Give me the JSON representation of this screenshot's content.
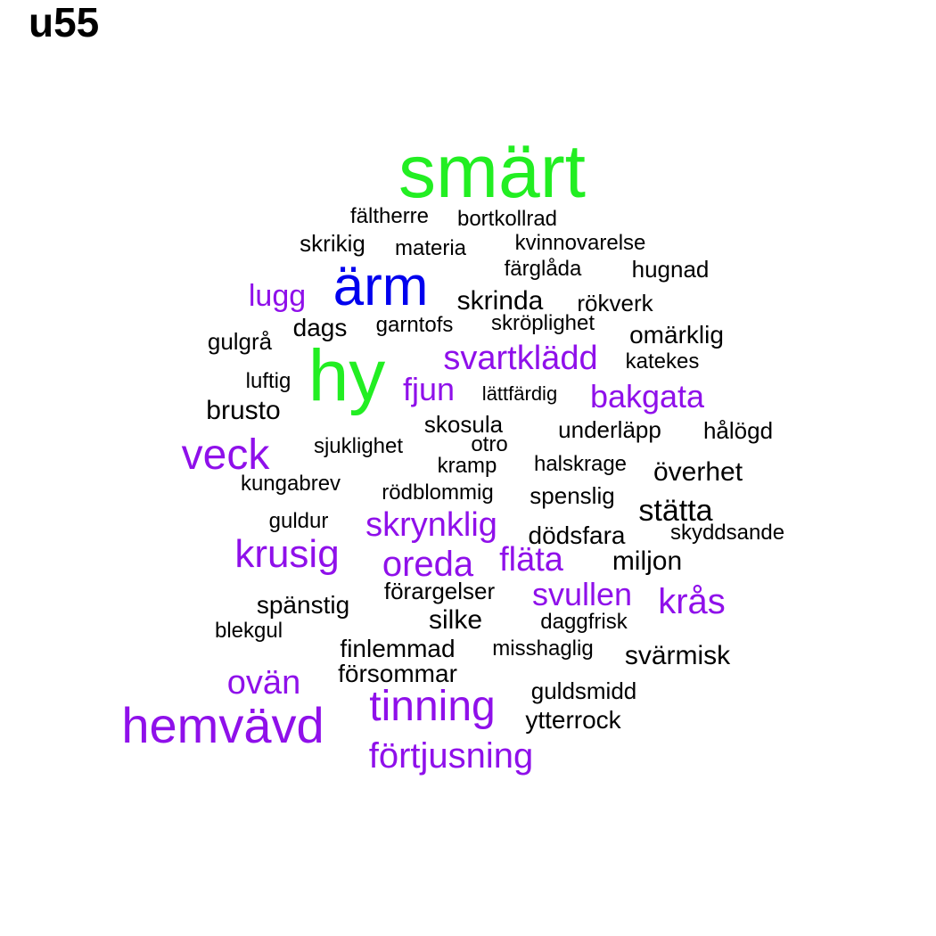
{
  "title": "u55",
  "colors": {
    "green": "#22ee22",
    "blue": "#0000ee",
    "purple": "#8f10ea",
    "black": "#000000"
  },
  "words": [
    {
      "text": "smärt",
      "color": "green"
    },
    {
      "text": "fältherre",
      "color": "black"
    },
    {
      "text": "bortkollrad",
      "color": "black"
    },
    {
      "text": "skrikig",
      "color": "black"
    },
    {
      "text": "materia",
      "color": "black"
    },
    {
      "text": "kvinnovarelse",
      "color": "black"
    },
    {
      "text": "färglåda",
      "color": "black"
    },
    {
      "text": "hugnad",
      "color": "black"
    },
    {
      "text": "lugg",
      "color": "purple"
    },
    {
      "text": "ärm",
      "color": "blue"
    },
    {
      "text": "skrinda",
      "color": "black"
    },
    {
      "text": "rökverk",
      "color": "black"
    },
    {
      "text": "dags",
      "color": "black"
    },
    {
      "text": "garntofs",
      "color": "black"
    },
    {
      "text": "skröplighet",
      "color": "black"
    },
    {
      "text": "omärklig",
      "color": "black"
    },
    {
      "text": "gulgrå",
      "color": "black"
    },
    {
      "text": "hy",
      "color": "green"
    },
    {
      "text": "svartklädd",
      "color": "purple"
    },
    {
      "text": "katekes",
      "color": "black"
    },
    {
      "text": "luftig",
      "color": "black"
    },
    {
      "text": "fjun",
      "color": "purple"
    },
    {
      "text": "lättfärdig",
      "color": "black"
    },
    {
      "text": "bakgata",
      "color": "purple"
    },
    {
      "text": "brusto",
      "color": "black"
    },
    {
      "text": "skosula",
      "color": "black"
    },
    {
      "text": "underläpp",
      "color": "black"
    },
    {
      "text": "hålögd",
      "color": "black"
    },
    {
      "text": "veck",
      "color": "purple"
    },
    {
      "text": "sjuklighet",
      "color": "black"
    },
    {
      "text": "otro",
      "color": "black"
    },
    {
      "text": "kramp",
      "color": "black"
    },
    {
      "text": "halskrage",
      "color": "black"
    },
    {
      "text": "överhet",
      "color": "black"
    },
    {
      "text": "kungabrev",
      "color": "black"
    },
    {
      "text": "rödblommig",
      "color": "black"
    },
    {
      "text": "spenslig",
      "color": "black"
    },
    {
      "text": "stätta",
      "color": "black"
    },
    {
      "text": "guldur",
      "color": "black"
    },
    {
      "text": "skrynklig",
      "color": "purple"
    },
    {
      "text": "dödsfara",
      "color": "black"
    },
    {
      "text": "skyddsande",
      "color": "black"
    },
    {
      "text": "krusig",
      "color": "purple"
    },
    {
      "text": "oreda",
      "color": "purple"
    },
    {
      "text": "fläta",
      "color": "purple"
    },
    {
      "text": "miljon",
      "color": "black"
    },
    {
      "text": "förargelser",
      "color": "black"
    },
    {
      "text": "spänstig",
      "color": "black"
    },
    {
      "text": "svullen",
      "color": "purple"
    },
    {
      "text": "krås",
      "color": "purple"
    },
    {
      "text": "silke",
      "color": "black"
    },
    {
      "text": "daggfrisk",
      "color": "black"
    },
    {
      "text": "blekgul",
      "color": "black"
    },
    {
      "text": "finlemmad",
      "color": "black"
    },
    {
      "text": "misshaglig",
      "color": "black"
    },
    {
      "text": "svärmisk",
      "color": "black"
    },
    {
      "text": "försommar",
      "color": "black"
    },
    {
      "text": "ovän",
      "color": "purple"
    },
    {
      "text": "guldsmidd",
      "color": "black"
    },
    {
      "text": "tinning",
      "color": "purple"
    },
    {
      "text": "hemvävd",
      "color": "purple"
    },
    {
      "text": "ytterrock",
      "color": "black"
    },
    {
      "text": "förtjusning",
      "color": "purple"
    }
  ]
}
